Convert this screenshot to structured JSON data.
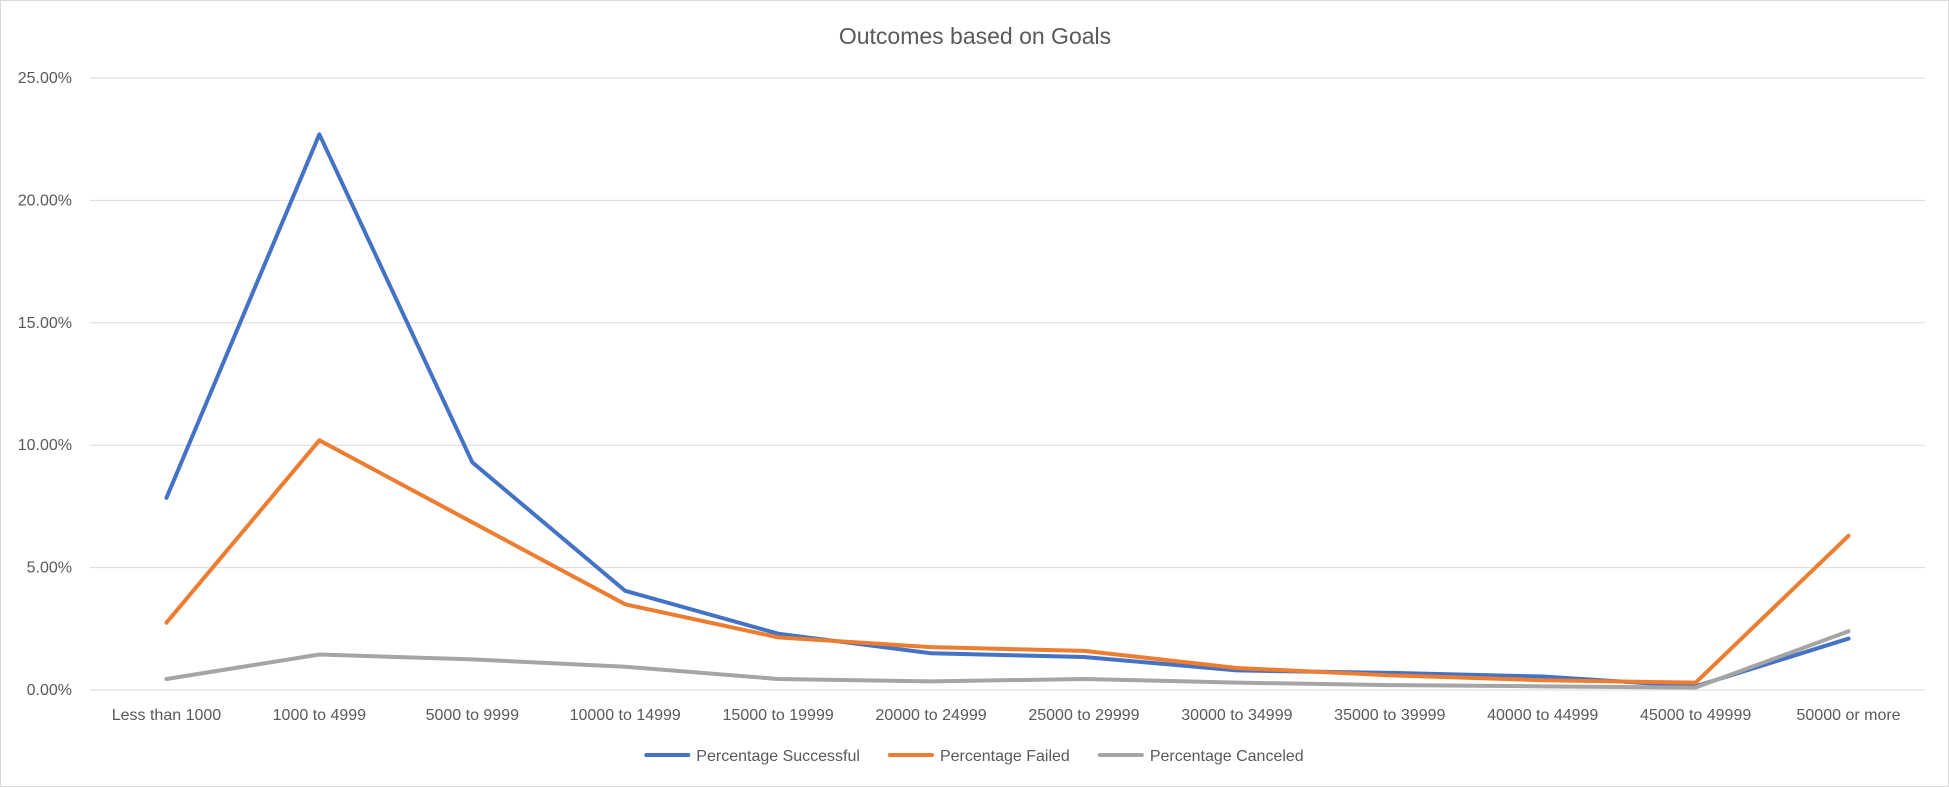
{
  "chart_data": {
    "type": "line",
    "title": "Outcomes based on Goals",
    "xlabel": "",
    "ylabel": "",
    "categories": [
      "Less than 1000",
      "1000 to 4999",
      "5000 to 9999",
      "10000 to 14999",
      "15000 to 19999",
      "20000 to 24999",
      "25000 to 29999",
      "30000 to 34999",
      "35000 to 39999",
      "40000 to 44999",
      "45000 to 49999",
      "50000 or more"
    ],
    "ylim": [
      0,
      0.25
    ],
    "yticks": [
      0,
      0.05,
      0.1,
      0.15,
      0.2,
      0.25
    ],
    "ytick_labels": [
      "0.00%",
      "5.00%",
      "10.00%",
      "15.00%",
      "20.00%",
      "25.00%"
    ],
    "grid": true,
    "legend_position": "bottom",
    "series": [
      {
        "name": "Percentage Successful",
        "color": "#4472C4",
        "values": [
          0.0785,
          0.227,
          0.093,
          0.0405,
          0.023,
          0.015,
          0.0135,
          0.008,
          0.007,
          0.0055,
          0.0015,
          0.021
        ]
      },
      {
        "name": "Percentage Failed",
        "color": "#ED7D31",
        "values": [
          0.0275,
          0.102,
          0.0685,
          0.035,
          0.0215,
          0.0175,
          0.016,
          0.009,
          0.006,
          0.004,
          0.003,
          0.063
        ]
      },
      {
        "name": "Percentage Canceled",
        "color": "#A5A5A5",
        "values": [
          0.0045,
          0.0145,
          0.0125,
          0.0095,
          0.0045,
          0.0035,
          0.0045,
          0.003,
          0.002,
          0.0015,
          0.001,
          0.024
        ]
      }
    ]
  }
}
